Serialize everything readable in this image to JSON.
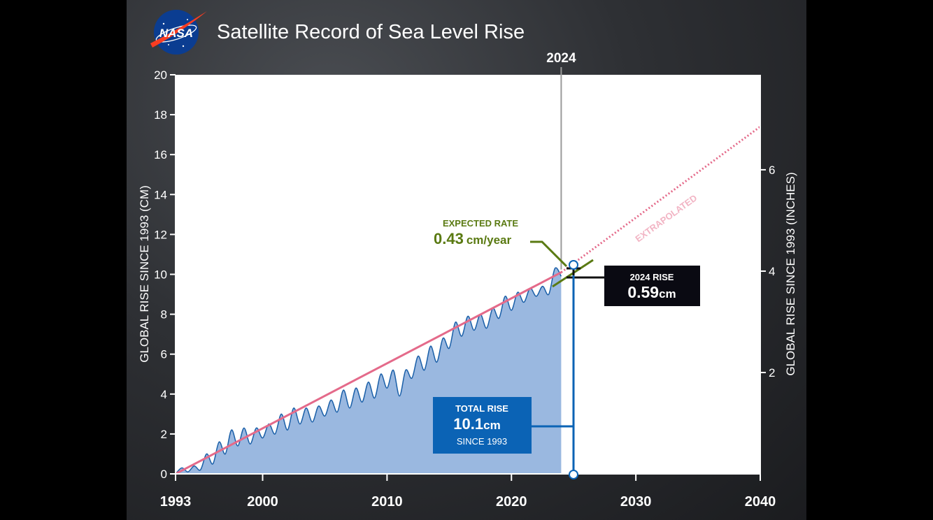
{
  "header": {
    "logo_text": "NASA",
    "title": "Satellite Record of Sea Level Rise"
  },
  "chart_data": {
    "type": "area",
    "title": "Satellite Record of Sea Level Rise",
    "ylabel": "GLOBAL RISE SINCE 1993 (CM)",
    "ylabel_right": "GLOBAL RISE SINCE 1993 (INCHES)",
    "xlim": [
      1993,
      2040
    ],
    "ylim": [
      0,
      20
    ],
    "x_ticks": [
      "1993",
      "2000",
      "2010",
      "2020",
      "2030",
      "2040"
    ],
    "y_ticks": [
      "0",
      "2",
      "4",
      "6",
      "8",
      "10",
      "12",
      "14",
      "16",
      "18",
      "20"
    ],
    "y_ticks_right": [
      "2",
      "4",
      "6"
    ],
    "grid": false,
    "marker_year": "2024",
    "series": [
      {
        "name": "",
        "x": [
          1993.0,
          1993.5,
          1994.0,
          1994.5,
          1995.0,
          1995.5,
          1996.0,
          1996.5,
          1997.0,
          1997.5,
          1998.0,
          1998.5,
          1999.0,
          1999.5,
          2000.0,
          2000.5,
          2001.0,
          2001.5,
          2002.0,
          2002.5,
          2003.0,
          2003.5,
          2004.0,
          2004.5,
          2005.0,
          2005.5,
          2006.0,
          2006.5,
          2007.0,
          2007.5,
          2008.0,
          2008.5,
          2009.0,
          2009.5,
          2010.0,
          2010.5,
          2011.0,
          2011.5,
          2012.0,
          2012.5,
          2013.0,
          2013.5,
          2014.0,
          2014.5,
          2015.0,
          2015.5,
          2016.0,
          2016.5,
          2017.0,
          2017.5,
          2018.0,
          2018.5,
          2019.0,
          2019.5,
          2020.0,
          2020.5,
          2021.0,
          2021.5,
          2022.0,
          2022.5,
          2023.0,
          2023.5,
          2024.0
        ],
        "values": [
          0.0,
          0.3,
          0.1,
          0.4,
          0.2,
          1.0,
          0.5,
          1.6,
          1.0,
          2.2,
          1.4,
          2.3,
          1.5,
          2.3,
          1.8,
          2.5,
          2.0,
          3.0,
          2.2,
          3.3,
          2.5,
          3.3,
          2.6,
          3.4,
          2.9,
          3.7,
          3.1,
          4.2,
          3.3,
          4.3,
          3.6,
          4.6,
          3.8,
          5.0,
          4.3,
          5.2,
          3.9,
          5.2,
          4.8,
          5.9,
          5.2,
          6.4,
          5.6,
          6.8,
          6.3,
          7.6,
          6.9,
          7.9,
          7.2,
          8.0,
          7.3,
          8.3,
          7.8,
          8.9,
          8.2,
          9.1,
          8.6,
          9.3,
          8.9,
          9.4,
          9.0,
          10.3,
          9.9
        ]
      },
      {
        "name": "",
        "x": [
          1993,
          2024
        ],
        "values": [
          0.0,
          10.1
        ]
      },
      {
        "name": "EXTRAPOLATED",
        "x": [
          2024,
          2040
        ],
        "values": [
          10.1,
          17.4
        ]
      }
    ],
    "annotations": {
      "rate_label": "EXPECTED RATE",
      "rate_value": "0.43",
      "rate_unit": "cm/year",
      "extrapolated_label": "EXTRAPOLATED",
      "rise_2024_label": "2024 RISE",
      "rise_2024_value": "0.59",
      "rise_2024_unit": "cm",
      "total_label": "TOTAL RISE",
      "total_value": "10.1",
      "total_unit": "cm",
      "total_since": "SINCE 1993"
    },
    "colors": {
      "area_fill": "#9ab8e0",
      "area_line": "#1a5fa8",
      "trend": "#e46a8a",
      "rate_green": "#5a7a12",
      "total_box": "#0b63b5",
      "rise_box": "#0a0a12",
      "logo_blue": "#0b3d91",
      "logo_red": "#fc3d21"
    }
  }
}
